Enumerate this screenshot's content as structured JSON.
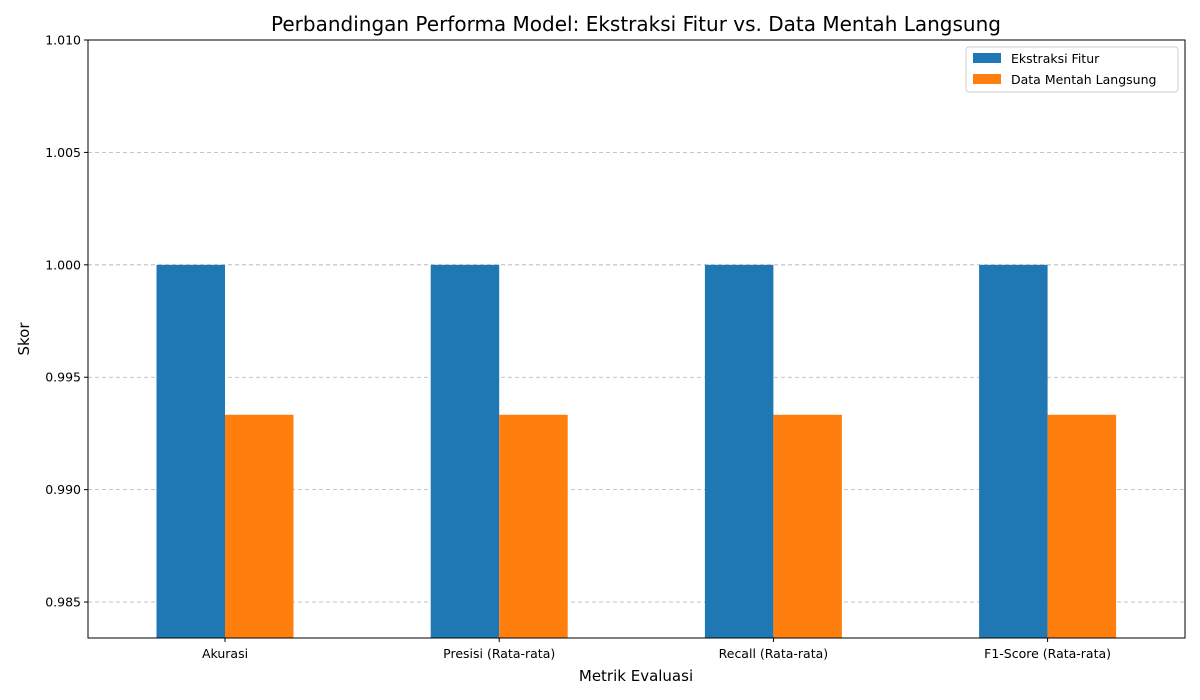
{
  "chart_data": {
    "type": "bar",
    "title": "Perbandingan Performa Model: Ekstraksi Fitur vs. Data Mentah Langsung",
    "xlabel": "Metrik Evaluasi",
    "ylabel": "Skor",
    "categories": [
      "Akurasi",
      "Presisi (Rata-rata)",
      "Recall (Rata-rata)",
      "F1-Score (Rata-rata)"
    ],
    "series": [
      {
        "name": "Ekstraksi Fitur",
        "color": "#1f77b4",
        "values": [
          1.0,
          1.0,
          1.0,
          1.0
        ]
      },
      {
        "name": "Data Mentah Langsung",
        "color": "#ff7f0e",
        "values": [
          0.99333,
          0.99333,
          0.99333,
          0.99333
        ]
      }
    ],
    "ylim": [
      0.9834,
      1.01
    ],
    "yticks": [
      0.985,
      0.99,
      0.995,
      1.0,
      1.005,
      1.01
    ],
    "ytick_labels": [
      "0.985",
      "0.990",
      "0.995",
      "1.000",
      "1.005",
      "1.010"
    ],
    "grid": "y-dashed",
    "legend": "top-right"
  }
}
